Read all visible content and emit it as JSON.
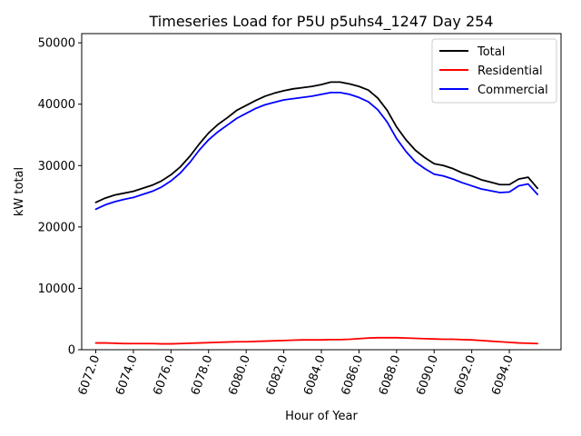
{
  "chart_data": {
    "type": "line",
    "title": "Timeseries Load for P5U p5uhs4_1247  Day 254",
    "xlabel": "Hour of Year",
    "ylabel": "kW total",
    "xlim": [
      6071.25,
      6096.75
    ],
    "ylim": [
      0,
      51500
    ],
    "xticks": [
      6072,
      6074,
      6076,
      6078,
      6080,
      6082,
      6084,
      6086,
      6088,
      6090,
      6092,
      6094
    ],
    "xtick_labels": [
      "6072.0",
      "6074.0",
      "6076.0",
      "6078.0",
      "6080.0",
      "6082.0",
      "6084.0",
      "6086.0",
      "6088.0",
      "6090.0",
      "6092.0",
      "6094.0"
    ],
    "yticks": [
      0,
      10000,
      20000,
      30000,
      40000,
      50000
    ],
    "ytick_labels": [
      "0",
      "10000",
      "20000",
      "30000",
      "40000",
      "50000"
    ],
    "grid": false,
    "legend_position": "top-right",
    "x": [
      6072.0,
      6072.5,
      6073.0,
      6073.5,
      6074.0,
      6074.5,
      6075.0,
      6075.5,
      6076.0,
      6076.5,
      6077.0,
      6077.5,
      6078.0,
      6078.5,
      6079.0,
      6079.5,
      6080.0,
      6080.5,
      6081.0,
      6081.5,
      6082.0,
      6082.5,
      6083.0,
      6083.5,
      6084.0,
      6084.5,
      6085.0,
      6085.5,
      6086.0,
      6086.5,
      6087.0,
      6087.5,
      6088.0,
      6088.5,
      6089.0,
      6089.5,
      6090.0,
      6090.5,
      6091.0,
      6091.5,
      6092.0,
      6092.5,
      6093.0,
      6093.5,
      6094.0,
      6094.5,
      6095.0,
      6095.5
    ],
    "series": [
      {
        "name": "Total",
        "color": "#000000",
        "values": [
          24000,
          24700,
          25200,
          25500,
          25800,
          26300,
          26800,
          27500,
          28500,
          29800,
          31500,
          33500,
          35300,
          36700,
          37800,
          39000,
          39800,
          40600,
          41300,
          41800,
          42200,
          42500,
          42700,
          42900,
          43200,
          43600,
          43600,
          43300,
          42900,
          42300,
          41000,
          39000,
          36300,
          34200,
          32500,
          31300,
          30300,
          30000,
          29500,
          28800,
          28300,
          27700,
          27300,
          26900,
          26900,
          27800,
          28100,
          26300
        ]
      },
      {
        "name": "Residential",
        "color": "#ff0000",
        "values": [
          1100,
          1100,
          1050,
          1000,
          1000,
          1000,
          1000,
          950,
          950,
          1000,
          1050,
          1100,
          1150,
          1200,
          1250,
          1300,
          1300,
          1350,
          1400,
          1450,
          1500,
          1550,
          1600,
          1600,
          1600,
          1650,
          1650,
          1700,
          1800,
          1900,
          1950,
          1950,
          1950,
          1900,
          1850,
          1800,
          1750,
          1700,
          1700,
          1650,
          1600,
          1500,
          1400,
          1300,
          1200,
          1100,
          1050,
          1000
        ]
      },
      {
        "name": "Commercial",
        "color": "#0000ff",
        "values": [
          22900,
          23600,
          24100,
          24500,
          24800,
          25300,
          25800,
          26500,
          27500,
          28800,
          30500,
          32500,
          34200,
          35500,
          36600,
          37700,
          38500,
          39300,
          39900,
          40300,
          40700,
          40900,
          41100,
          41300,
          41600,
          41900,
          41900,
          41600,
          41100,
          40400,
          39100,
          37100,
          34400,
          32300,
          30600,
          29500,
          28600,
          28300,
          27800,
          27200,
          26700,
          26200,
          25900,
          25600,
          25700,
          26700,
          27000,
          25300
        ]
      }
    ]
  }
}
